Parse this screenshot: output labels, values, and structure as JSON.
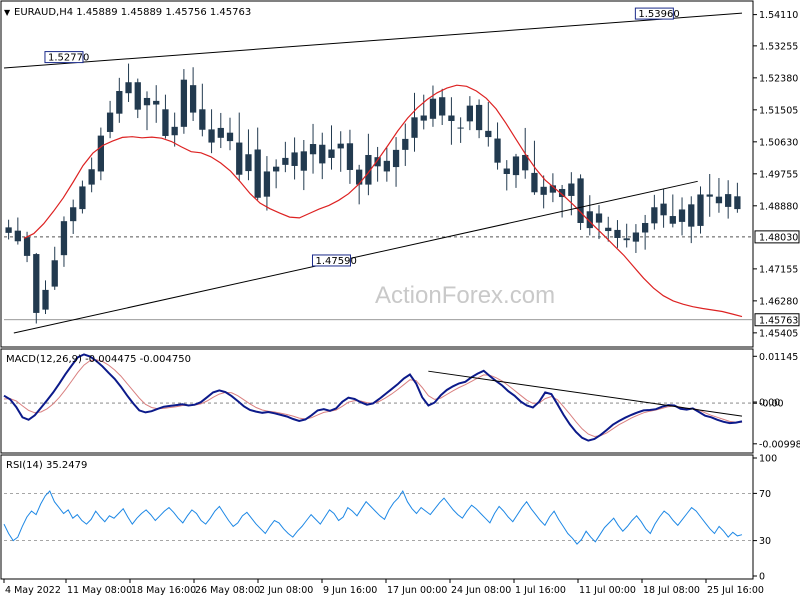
{
  "chart_data": {
    "type": "candlestick",
    "symbol_header": "EURAUD,H4  1.45889 1.45889 1.45756 1.45763",
    "watermark": "ActionForex.com",
    "price_panel": {
      "ylim": [
        1.451,
        1.544
      ],
      "y_ticks": [
        "1.54110",
        "1.53255",
        "1.52380",
        "1.51505",
        "1.50630",
        "1.49755",
        "1.48880",
        "1.48030",
        "1.47155",
        "1.46280",
        "1.45763",
        "1.45405"
      ],
      "y_tick_values": [
        1.5411,
        1.53255,
        1.5238,
        1.51505,
        1.5063,
        1.49755,
        1.4888,
        1.4803,
        1.47155,
        1.4628,
        1.45763,
        1.45405
      ],
      "horizontal_level": {
        "value": 1.4803,
        "label": "1.48030"
      },
      "last_price": {
        "value": 1.45763,
        "label": "1.45763"
      },
      "annotations": [
        {
          "label": "1.52770",
          "value": 1.5277,
          "x_index": 12
        },
        {
          "label": "1.53960",
          "value": 1.5396,
          "x_index": 132
        },
        {
          "label": "1.47590",
          "value": 1.4759,
          "x_index": 66
        }
      ],
      "trendlines": [
        {
          "from": [
            0,
            1.5265
          ],
          "to": [
            150,
            1.5415
          ]
        },
        {
          "from": [
            2,
            1.454
          ],
          "to": [
            141,
            1.4955
          ]
        }
      ],
      "ma_series": {
        "name": "",
        "color": "#dd2222",
        "values": [
          1.4799,
          1.4812,
          1.4839,
          1.4873,
          1.491,
          1.4953,
          1.4998,
          1.5032,
          1.5053,
          1.5065,
          1.5075,
          1.5077,
          1.5074,
          1.5076,
          1.5073,
          1.5064,
          1.5049,
          1.5036,
          1.5033,
          1.5022,
          1.5005,
          1.4983,
          1.4953,
          1.4921,
          1.4895,
          1.488,
          1.4868,
          1.4857,
          1.4855,
          1.4867,
          1.4879,
          1.4889,
          1.4903,
          1.4921,
          1.4946,
          1.4978,
          1.5015,
          1.5053,
          1.5093,
          1.5128,
          1.5156,
          1.5179,
          1.5197,
          1.521,
          1.5218,
          1.5215,
          1.5202,
          1.5182,
          1.5153,
          1.5114,
          1.5071,
          1.5029,
          1.499,
          1.4958,
          1.4935,
          1.4912,
          1.4887,
          1.4859,
          1.4832,
          1.4806,
          1.4779,
          1.4752,
          1.4721,
          1.469,
          1.4663,
          1.4642,
          1.4628,
          1.4619,
          1.4612,
          1.4607,
          1.4603,
          1.4599,
          1.4592,
          1.4585
        ]
      },
      "candles": [
        {
          "o": 1.4829,
          "h": 1.485,
          "l": 1.4796,
          "c": 1.4814
        },
        {
          "o": 1.482,
          "h": 1.4856,
          "l": 1.4782,
          "c": 1.4791
        },
        {
          "o": 1.4802,
          "h": 1.4817,
          "l": 1.4734,
          "c": 1.4751
        },
        {
          "o": 1.4756,
          "h": 1.4759,
          "l": 1.4566,
          "c": 1.4595
        },
        {
          "o": 1.4604,
          "h": 1.4684,
          "l": 1.4592,
          "c": 1.4658
        },
        {
          "o": 1.4667,
          "h": 1.4776,
          "l": 1.4658,
          "c": 1.4739
        },
        {
          "o": 1.4753,
          "h": 1.4859,
          "l": 1.4721,
          "c": 1.4846
        },
        {
          "o": 1.4846,
          "h": 1.4905,
          "l": 1.4811,
          "c": 1.4884
        },
        {
          "o": 1.4879,
          "h": 1.4957,
          "l": 1.4867,
          "c": 1.4941
        },
        {
          "o": 1.4946,
          "h": 1.502,
          "l": 1.4925,
          "c": 1.4988
        },
        {
          "o": 1.4982,
          "h": 1.5102,
          "l": 1.4958,
          "c": 1.508
        },
        {
          "o": 1.509,
          "h": 1.5175,
          "l": 1.5073,
          "c": 1.5143
        },
        {
          "o": 1.514,
          "h": 1.5238,
          "l": 1.5115,
          "c": 1.5202
        },
        {
          "o": 1.5196,
          "h": 1.5277,
          "l": 1.5172,
          "c": 1.5226
        },
        {
          "o": 1.5226,
          "h": 1.5236,
          "l": 1.5128,
          "c": 1.5151
        },
        {
          "o": 1.5163,
          "h": 1.5201,
          "l": 1.5095,
          "c": 1.5183
        },
        {
          "o": 1.5175,
          "h": 1.5218,
          "l": 1.5115,
          "c": 1.5165
        },
        {
          "o": 1.5152,
          "h": 1.5192,
          "l": 1.5072,
          "c": 1.5079
        },
        {
          "o": 1.5081,
          "h": 1.5143,
          "l": 1.505,
          "c": 1.5104
        },
        {
          "o": 1.5104,
          "h": 1.5262,
          "l": 1.5085,
          "c": 1.5233
        },
        {
          "o": 1.5218,
          "h": 1.5267,
          "l": 1.512,
          "c": 1.5143
        },
        {
          "o": 1.5152,
          "h": 1.5222,
          "l": 1.5078,
          "c": 1.5096
        },
        {
          "o": 1.5097,
          "h": 1.5152,
          "l": 1.5032,
          "c": 1.5061
        },
        {
          "o": 1.5074,
          "h": 1.5142,
          "l": 1.5046,
          "c": 1.5101
        },
        {
          "o": 1.5088,
          "h": 1.5129,
          "l": 1.504,
          "c": 1.5065
        },
        {
          "o": 1.5061,
          "h": 1.5143,
          "l": 1.4957,
          "c": 1.4973
        },
        {
          "o": 1.4983,
          "h": 1.5097,
          "l": 1.4958,
          "c": 1.5029
        },
        {
          "o": 1.5042,
          "h": 1.5102,
          "l": 1.4904,
          "c": 1.491
        },
        {
          "o": 1.4913,
          "h": 1.5024,
          "l": 1.4875,
          "c": 1.4982
        },
        {
          "o": 1.4982,
          "h": 1.5015,
          "l": 1.4936,
          "c": 1.4995
        },
        {
          "o": 1.5,
          "h": 1.5063,
          "l": 1.498,
          "c": 1.5019
        },
        {
          "o": 1.5034,
          "h": 1.5075,
          "l": 1.496,
          "c": 1.4997
        },
        {
          "o": 1.4984,
          "h": 1.5068,
          "l": 1.4931,
          "c": 1.5037
        },
        {
          "o": 1.5029,
          "h": 1.5112,
          "l": 1.4976,
          "c": 1.5057
        },
        {
          "o": 1.5055,
          "h": 1.5088,
          "l": 1.4961,
          "c": 1.5004
        },
        {
          "o": 1.5019,
          "h": 1.5108,
          "l": 1.4987,
          "c": 1.5042
        },
        {
          "o": 1.5045,
          "h": 1.5092,
          "l": 1.4981,
          "c": 1.5058
        },
        {
          "o": 1.5059,
          "h": 1.5096,
          "l": 1.4948,
          "c": 1.4986
        },
        {
          "o": 1.4987,
          "h": 1.5,
          "l": 1.4892,
          "c": 1.4946
        },
        {
          "o": 1.4946,
          "h": 1.5085,
          "l": 1.4917,
          "c": 1.5027
        },
        {
          "o": 1.5021,
          "h": 1.5049,
          "l": 1.4954,
          "c": 1.4996
        },
        {
          "o": 1.4982,
          "h": 1.5047,
          "l": 1.4954,
          "c": 1.5011
        },
        {
          "o": 1.4994,
          "h": 1.5076,
          "l": 1.494,
          "c": 1.5041
        },
        {
          "o": 1.5041,
          "h": 1.5113,
          "l": 1.4997,
          "c": 1.5071
        },
        {
          "o": 1.5074,
          "h": 1.5197,
          "l": 1.5036,
          "c": 1.513
        },
        {
          "o": 1.5135,
          "h": 1.5192,
          "l": 1.5097,
          "c": 1.5121
        },
        {
          "o": 1.5126,
          "h": 1.5217,
          "l": 1.5104,
          "c": 1.5181
        },
        {
          "o": 1.5185,
          "h": 1.5208,
          "l": 1.5109,
          "c": 1.5135
        },
        {
          "o": 1.5135,
          "h": 1.5185,
          "l": 1.5055,
          "c": 1.512
        },
        {
          "o": 1.5102,
          "h": 1.513,
          "l": 1.506,
          "c": 1.5101
        },
        {
          "o": 1.5119,
          "h": 1.5188,
          "l": 1.5095,
          "c": 1.5162
        },
        {
          "o": 1.5164,
          "h": 1.5179,
          "l": 1.5073,
          "c": 1.5095
        },
        {
          "o": 1.5093,
          "h": 1.5172,
          "l": 1.505,
          "c": 1.5076
        },
        {
          "o": 1.5072,
          "h": 1.5116,
          "l": 1.4987,
          "c": 1.5006
        },
        {
          "o": 1.499,
          "h": 1.5013,
          "l": 1.493,
          "c": 1.4975
        },
        {
          "o": 1.4972,
          "h": 1.503,
          "l": 1.4937,
          "c": 1.5023
        },
        {
          "o": 1.5027,
          "h": 1.5101,
          "l": 1.4962,
          "c": 1.4985
        },
        {
          "o": 1.4978,
          "h": 1.5066,
          "l": 1.4918,
          "c": 1.4925
        },
        {
          "o": 1.494,
          "h": 1.4971,
          "l": 1.4881,
          "c": 1.4918
        },
        {
          "o": 1.4924,
          "h": 1.4977,
          "l": 1.4898,
          "c": 1.4944
        },
        {
          "o": 1.4934,
          "h": 1.4945,
          "l": 1.4856,
          "c": 1.4912
        },
        {
          "o": 1.4915,
          "h": 1.498,
          "l": 1.4862,
          "c": 1.4949
        },
        {
          "o": 1.4963,
          "h": 1.4974,
          "l": 1.4822,
          "c": 1.4841
        },
        {
          "o": 1.4827,
          "h": 1.4917,
          "l": 1.4807,
          "c": 1.4873
        },
        {
          "o": 1.4867,
          "h": 1.489,
          "l": 1.4797,
          "c": 1.4842
        },
        {
          "o": 1.4828,
          "h": 1.4858,
          "l": 1.479,
          "c": 1.4819
        },
        {
          "o": 1.4822,
          "h": 1.4849,
          "l": 1.4773,
          "c": 1.48
        },
        {
          "o": 1.4799,
          "h": 1.4839,
          "l": 1.4774,
          "c": 1.4794
        },
        {
          "o": 1.479,
          "h": 1.4838,
          "l": 1.4759,
          "c": 1.4815
        },
        {
          "o": 1.4815,
          "h": 1.4863,
          "l": 1.4768,
          "c": 1.4841
        },
        {
          "o": 1.484,
          "h": 1.4918,
          "l": 1.4823,
          "c": 1.4884
        },
        {
          "o": 1.4894,
          "h": 1.4934,
          "l": 1.4828,
          "c": 1.4862
        },
        {
          "o": 1.486,
          "h": 1.4919,
          "l": 1.4829,
          "c": 1.4839
        },
        {
          "o": 1.4844,
          "h": 1.4911,
          "l": 1.4807,
          "c": 1.4878
        },
        {
          "o": 1.4892,
          "h": 1.4914,
          "l": 1.4786,
          "c": 1.4831
        },
        {
          "o": 1.4833,
          "h": 1.4941,
          "l": 1.4812,
          "c": 1.4919
        },
        {
          "o": 1.4919,
          "h": 1.4975,
          "l": 1.4858,
          "c": 1.4913
        },
        {
          "o": 1.4913,
          "h": 1.4964,
          "l": 1.4869,
          "c": 1.4895
        },
        {
          "o": 1.4885,
          "h": 1.4958,
          "l": 1.4853,
          "c": 1.492
        },
        {
          "o": 1.4914,
          "h": 1.4951,
          "l": 1.4869,
          "c": 1.4879
        }
      ]
    },
    "macd_panel": {
      "title": "MACD(12,26,9) -0.004475 -0.004750",
      "ylim": [
        -0.0115,
        0.0125
      ],
      "y_ticks": [
        "0.01145",
        "0.00",
        "-0.00",
        "-0.009985"
      ],
      "y_tick_values": [
        0.01145,
        0.00025,
        -5e-05,
        -0.009985
      ],
      "zero_level": 0.0,
      "trendline": {
        "from": [
          115,
          0.0078
        ],
        "to": [
          200,
          -0.0032
        ]
      },
      "main": [
        0.0018,
        0.0009,
        -0.001,
        -0.0035,
        -0.0041,
        -0.003,
        -0.0012,
        0.0007,
        0.0026,
        0.0048,
        0.0071,
        0.0092,
        0.0112,
        0.0119,
        0.0114,
        0.0103,
        0.009,
        0.0074,
        0.0059,
        0.004,
        0.0019,
        -0.0001,
        -0.0018,
        -0.0023,
        -0.002,
        -0.0014,
        -0.0009,
        -0.0007,
        -0.0005,
        -0.0003,
        -0.0006,
        -0.0004,
        0.0002,
        0.0014,
        0.0026,
        0.0031,
        0.0027,
        0.0017,
        0.0005,
        -0.0008,
        -0.0017,
        -0.0021,
        -0.0024,
        -0.0022,
        -0.0025,
        -0.0029,
        -0.0033,
        -0.0039,
        -0.0044,
        -0.004,
        -0.003,
        -0.0018,
        -0.0015,
        -0.0019,
        -0.0013,
        0.0003,
        0.0013,
        0.001,
        0.0002,
        -0.0004,
        -0.0001,
        0.001,
        0.0022,
        0.0034,
        0.0046,
        0.006,
        0.007,
        0.0048,
        0.0014,
        -0.0006,
        0.0001,
        0.0019,
        0.0032,
        0.0041,
        0.0048,
        0.0052,
        0.0063,
        0.0072,
        0.0079,
        0.0066,
        0.0054,
        0.0043,
        0.0029,
        0.0018,
        0.0004,
        -0.0006,
        -0.0011,
        0.0003,
        0.0026,
        0.0022,
        -0.0003,
        -0.0029,
        -0.0052,
        -0.0071,
        -0.0085,
        -0.0092,
        -0.0088,
        -0.0078,
        -0.0066,
        -0.0053,
        -0.0044,
        -0.0036,
        -0.0029,
        -0.0023,
        -0.0018,
        -0.0017,
        -0.0015,
        -0.0009,
        -0.0005,
        -0.0006,
        -0.0014,
        -0.0016,
        -0.0013,
        -0.0022,
        -0.0031,
        -0.0035,
        -0.0041,
        -0.0046,
        -0.0049,
        -0.0048,
        -0.0045
      ],
      "signal": [
        0.001,
        0.0011,
        0.0005,
        -0.0007,
        -0.0018,
        -0.0024,
        -0.0022,
        -0.0014,
        -0.0002,
        0.0014,
        0.0033,
        0.0054,
        0.0075,
        0.0093,
        0.0104,
        0.0106,
        0.0102,
        0.0093,
        0.0081,
        0.0066,
        0.0048,
        0.003,
        0.0012,
        -0.0003,
        -0.0011,
        -0.0014,
        -0.0013,
        -0.0011,
        -0.0009,
        -0.0006,
        -0.0005,
        -0.0005,
        -0.0002,
        0.0005,
        0.0014,
        0.0022,
        0.0026,
        0.0025,
        0.0018,
        0.0008,
        -0.0002,
        -0.0011,
        -0.0017,
        -0.002,
        -0.0022,
        -0.0025,
        -0.0028,
        -0.0032,
        -0.0037,
        -0.0039,
        -0.0036,
        -0.0029,
        -0.0023,
        -0.002,
        -0.0017,
        -0.0008,
        0.0002,
        0.0006,
        0.0005,
        0.0001,
        -0.0001,
        0.0004,
        0.0012,
        0.0022,
        0.0033,
        0.0045,
        0.0057,
        0.0055,
        0.0038,
        0.0018,
        0.0009,
        0.0012,
        0.0021,
        0.003,
        0.0038,
        0.0045,
        0.0053,
        0.0061,
        0.0069,
        0.0068,
        0.0062,
        0.0054,
        0.0043,
        0.0031,
        0.0019,
        0.0007,
        -0.0001,
        0.0,
        0.0011,
        0.0016,
        0.0008,
        -0.0009,
        -0.0027,
        -0.0046,
        -0.0063,
        -0.0076,
        -0.0082,
        -0.008,
        -0.0073,
        -0.0063,
        -0.0053,
        -0.0045,
        -0.0037,
        -0.003,
        -0.0024,
        -0.002,
        -0.0017,
        -0.0013,
        -0.0009,
        -0.0007,
        -0.001,
        -0.0013,
        -0.0013,
        -0.0017,
        -0.0024,
        -0.003,
        -0.0035,
        -0.004,
        -0.0045,
        -0.0047,
        -0.0047
      ]
    },
    "rsi_panel": {
      "title": "RSI(14) 35.2479",
      "ylim": [
        0,
        100
      ],
      "y_ticks": [
        "100",
        "70",
        "30",
        "0"
      ],
      "y_tick_values": [
        100,
        70,
        30,
        0
      ],
      "levels": [
        70,
        30
      ],
      "values": [
        44,
        36,
        30,
        33,
        42,
        50,
        55,
        52,
        61,
        68,
        72,
        63,
        58,
        53,
        56,
        49,
        52,
        47,
        44,
        48,
        55,
        50,
        46,
        51,
        49,
        53,
        57,
        50,
        44,
        49,
        53,
        56,
        52,
        47,
        51,
        55,
        58,
        54,
        49,
        45,
        51,
        56,
        53,
        47,
        44,
        49,
        55,
        59,
        53,
        47,
        42,
        45,
        51,
        54,
        49,
        44,
        40,
        36,
        42,
        47,
        45,
        40,
        36,
        33,
        38,
        42,
        47,
        52,
        48,
        44,
        50,
        56,
        53,
        47,
        50,
        58,
        55,
        51,
        57,
        63,
        59,
        55,
        51,
        48,
        56,
        62,
        66,
        72,
        63,
        57,
        53,
        58,
        55,
        52,
        57,
        62,
        66,
        61,
        56,
        52,
        49,
        55,
        60,
        57,
        53,
        49,
        45,
        53,
        59,
        55,
        50,
        46,
        52,
        58,
        63,
        57,
        52,
        47,
        43,
        50,
        55,
        48,
        42,
        36,
        32,
        27,
        31,
        38,
        33,
        29,
        35,
        41,
        45,
        49,
        43,
        38,
        42,
        47,
        51,
        46,
        40,
        36,
        44,
        50,
        55,
        52,
        47,
        43,
        48,
        53,
        58,
        55,
        50,
        45,
        40,
        36,
        42,
        38,
        33,
        37,
        34,
        35
      ]
    },
    "x_axis": {
      "tick_labels": [
        "4 May 2022",
        "11 May 08:00",
        "18 May 16:00",
        "26 May 08:00",
        "2 Jun 08:00",
        "9 Jun 16:00",
        "17 Jun 00:00",
        "24 Jun 08:00",
        "1 Jul 16:00",
        "11 Jul 00:00",
        "18 Jul 08:00",
        "25 Jul 16:00"
      ]
    }
  }
}
